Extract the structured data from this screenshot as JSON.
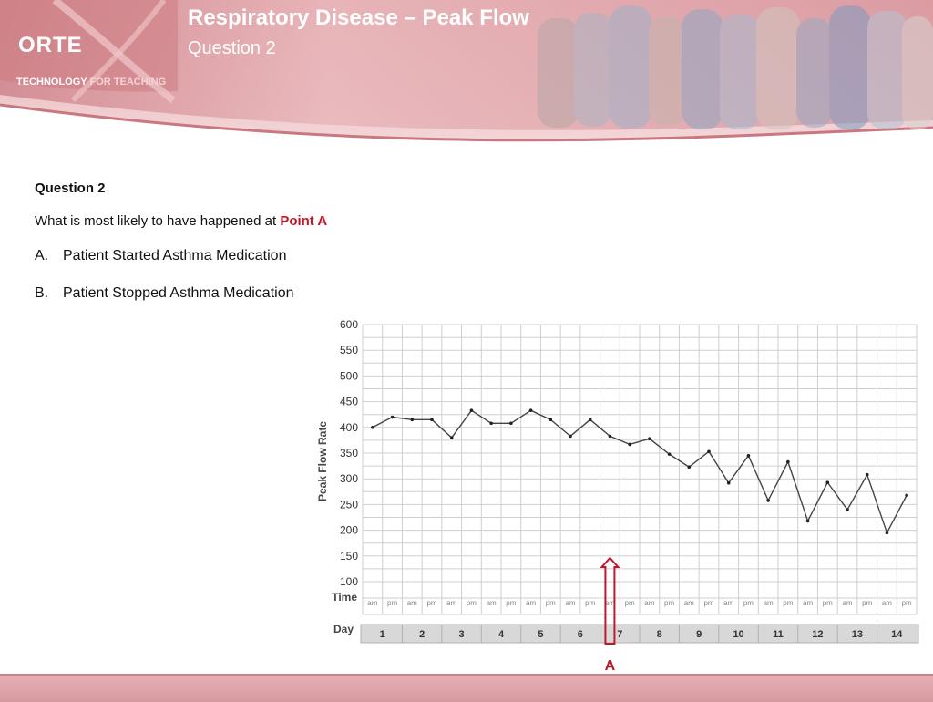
{
  "header": {
    "title": "Respiratory Disease – Peak Flow",
    "subtitle": "Question 2",
    "logo_text": "ORTE",
    "logo_tagline_1": "TECHNOLOGY",
    "logo_tagline_2": "FOR TEACHING"
  },
  "question": {
    "heading": "Question 2",
    "prompt": "What is most likely to have happened at ",
    "point": "Point A",
    "options": [
      {
        "letter": "A.",
        "text": "Patient Started Asthma Medication"
      },
      {
        "letter": "B.",
        "text": "Patient Stopped Asthma Medication"
      }
    ]
  },
  "colors": {
    "accent": "#c0182a",
    "header": "#d48d93",
    "footer": "#e0a7ad"
  },
  "chart_data": {
    "type": "line",
    "ylabel": "Peak Flow Rate",
    "ylim": [
      100,
      600
    ],
    "yticks": [
      600,
      550,
      500,
      450,
      400,
      350,
      300,
      250,
      200,
      150,
      100
    ],
    "time_label": "Time",
    "day_label": "Day",
    "times": [
      "am",
      "pm",
      "am",
      "pm",
      "am",
      "pm",
      "am",
      "pm",
      "am",
      "pm",
      "am",
      "pm",
      "am",
      "pm",
      "am",
      "pm",
      "am",
      "pm",
      "am",
      "pm",
      "am",
      "pm",
      "am",
      "pm",
      "am",
      "pm",
      "am",
      "pm"
    ],
    "days": [
      "1",
      "2",
      "3",
      "4",
      "5",
      "6",
      "7",
      "8",
      "9",
      "10",
      "11",
      "12",
      "13",
      "14"
    ],
    "values": [
      400,
      420,
      415,
      415,
      380,
      433,
      408,
      408,
      433,
      415,
      383,
      415,
      383,
      367,
      378,
      348,
      323,
      353,
      292,
      345,
      258,
      333,
      218,
      293,
      240,
      308,
      195,
      268
    ],
    "grid": true,
    "annotation": {
      "label": "A",
      "index": 12
    }
  }
}
